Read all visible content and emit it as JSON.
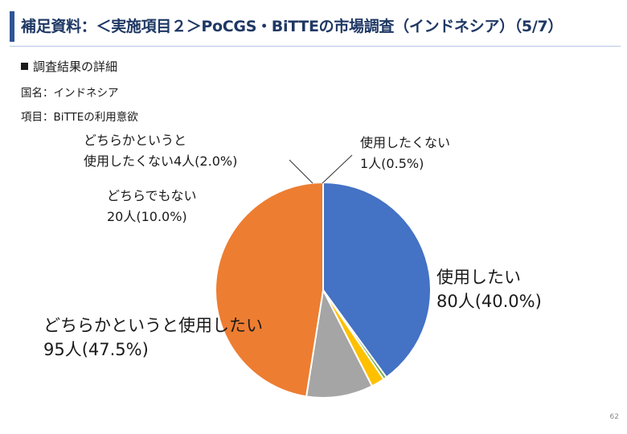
{
  "header": {
    "title": "補足資料：＜実施項目２＞PoCGS・BiTTEの市場調査（インドネシア）（5/7）"
  },
  "section": {
    "heading": "調査結果の詳細",
    "country": "国名：インドネシア",
    "item": "項目：BiTTEの利用意欲"
  },
  "footer": {
    "page_number": "62"
  },
  "colors": {
    "title_bar": "#2f5597",
    "want_to_use": "#4472c4",
    "somewhat_want": "#ed7d31",
    "neither": "#a5a5a5",
    "somewhat_not": "#ffc000",
    "not_want": "#70ad47"
  },
  "chart_data": {
    "type": "pie",
    "categories": [
      "使用したい",
      "使用したくない",
      "どちらかというと使用したくない",
      "どちらでもない",
      "どちらかというと使用したい"
    ],
    "values": [
      80,
      1,
      4,
      20,
      95
    ],
    "percents": [
      40.0,
      0.5,
      2.0,
      10.0,
      47.5
    ],
    "colors": [
      "#4472c4",
      "#70ad47",
      "#ffc000",
      "#a5a5a5",
      "#ed7d31"
    ],
    "data_labels": [
      [
        "使用したい",
        "80人(40.0%)"
      ],
      [
        "使用したくない",
        "1人(0.5%)"
      ],
      [
        "どちらかというと",
        "使用したくない4人(2.0%)"
      ],
      [
        "どちらでもない",
        "20人(10.0%)"
      ],
      [
        "どちらかというと使用したい",
        "95人(47.5%)"
      ]
    ]
  }
}
